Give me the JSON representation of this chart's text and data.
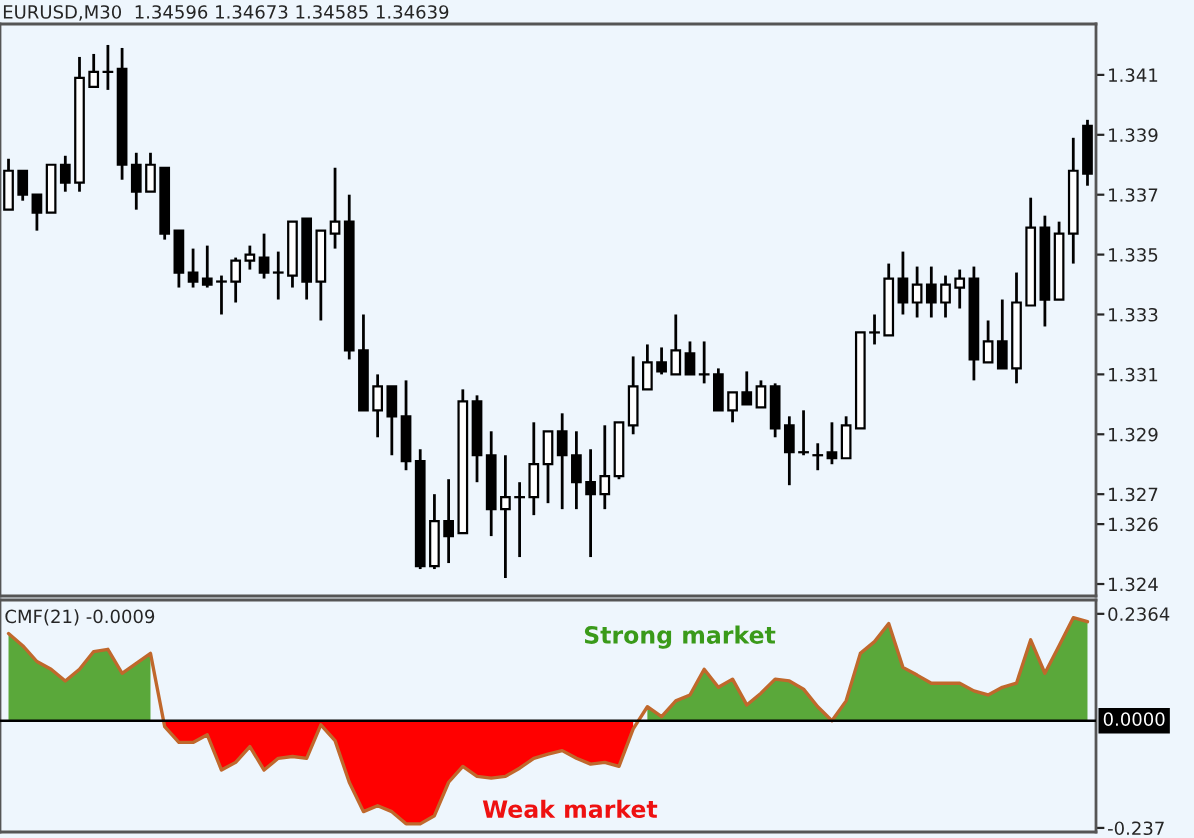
{
  "chart_data": [
    {
      "type": "candlestick",
      "title": "EURUSD,M30  1.34596 1.34673 1.34585 1.34639",
      "categories": [
        null,
        null,
        null,
        null,
        null,
        null,
        null,
        null,
        null,
        null,
        null,
        null,
        null,
        null,
        null,
        null,
        null,
        null,
        null,
        null,
        null,
        null,
        null,
        null,
        null,
        null,
        null,
        null,
        null,
        null,
        null,
        null,
        null,
        null,
        null,
        null,
        null,
        null,
        null,
        null,
        null,
        null,
        null,
        null,
        null,
        null,
        null,
        null,
        null,
        null,
        null,
        null,
        null,
        null,
        null,
        null,
        null,
        null,
        null,
        null,
        null,
        null,
        null,
        null,
        null,
        null,
        null,
        null,
        null,
        null,
        null,
        null,
        null,
        null,
        null,
        null,
        null
      ],
      "ohlc": [
        [
          1.3365,
          1.3382,
          1.3365,
          1.3378
        ],
        [
          1.3378,
          1.3378,
          1.3368,
          1.337
        ],
        [
          1.337,
          1.337,
          1.3358,
          1.3364
        ],
        [
          1.3364,
          1.338,
          1.3364,
          1.338
        ],
        [
          1.338,
          1.3383,
          1.3371,
          1.3374
        ],
        [
          1.3374,
          1.3416,
          1.3371,
          1.3409
        ],
        [
          1.3406,
          1.3417,
          1.3406,
          1.3411
        ],
        [
          1.3411,
          1.342,
          1.3405,
          1.3411
        ],
        [
          1.3412,
          1.3419,
          1.3375,
          1.338
        ],
        [
          1.338,
          1.3384,
          1.3365,
          1.3371
        ],
        [
          1.3371,
          1.3384,
          1.3371,
          1.338
        ],
        [
          1.3379,
          1.3379,
          1.3355,
          1.3357
        ],
        [
          1.3358,
          1.3358,
          1.3339,
          1.3344
        ],
        [
          1.3344,
          1.3352,
          1.3339,
          1.3341
        ],
        [
          1.3342,
          1.3353,
          1.3339,
          1.334
        ],
        [
          1.3341,
          1.3343,
          1.333,
          1.3341
        ],
        [
          1.3341,
          1.3349,
          1.3334,
          1.3348
        ],
        [
          1.3348,
          1.3353,
          1.3345,
          1.335
        ],
        [
          1.3349,
          1.3357,
          1.3342,
          1.3344
        ],
        [
          1.3344,
          1.3351,
          1.3335,
          1.3344
        ],
        [
          1.3343,
          1.3361,
          1.3339,
          1.3361
        ],
        [
          1.3362,
          1.3362,
          1.3335,
          1.3341
        ],
        [
          1.3341,
          1.3358,
          1.3328,
          1.3358
        ],
        [
          1.3357,
          1.3379,
          1.3352,
          1.3361
        ],
        [
          1.3361,
          1.337,
          1.3315,
          1.3318
        ],
        [
          1.3318,
          1.333,
          1.3298,
          1.3298
        ],
        [
          1.3298,
          1.331,
          1.3289,
          1.3306
        ],
        [
          1.3306,
          1.3306,
          1.3283,
          1.3296
        ],
        [
          1.3296,
          1.3308,
          1.3278,
          1.3281
        ],
        [
          1.3281,
          1.3285,
          1.3245,
          1.3246
        ],
        [
          1.3246,
          1.327,
          1.3245,
          1.3261
        ],
        [
          1.3261,
          1.3275,
          1.3247,
          1.3256
        ],
        [
          1.3257,
          1.3305,
          1.3257,
          1.3301
        ],
        [
          1.3301,
          1.3303,
          1.3274,
          1.3283
        ],
        [
          1.3283,
          1.3291,
          1.3256,
          1.3265
        ],
        [
          1.3265,
          1.3283,
          1.3242,
          1.3269
        ],
        [
          1.3269,
          1.3274,
          1.3249,
          1.3269
        ],
        [
          1.3269,
          1.3294,
          1.3263,
          1.328
        ],
        [
          1.328,
          1.3291,
          1.3267,
          1.3291
        ],
        [
          1.3291,
          1.3297,
          1.3265,
          1.3283
        ],
        [
          1.3283,
          1.3291,
          1.3265,
          1.3274
        ],
        [
          1.3274,
          1.3285,
          1.3249,
          1.327
        ],
        [
          1.327,
          1.3293,
          1.3265,
          1.3276
        ],
        [
          1.3276,
          1.3294,
          1.3275,
          1.3294
        ],
        [
          1.3293,
          1.3316,
          1.329,
          1.3306
        ],
        [
          1.3305,
          1.332,
          1.3305,
          1.3314
        ],
        [
          1.3314,
          1.3319,
          1.331,
          1.3311
        ],
        [
          1.331,
          1.333,
          1.331,
          1.3318
        ],
        [
          1.3317,
          1.3321,
          1.331,
          1.331
        ],
        [
          1.331,
          1.3321,
          1.3307,
          1.331
        ],
        [
          1.331,
          1.3312,
          1.3298,
          1.3298
        ],
        [
          1.3298,
          1.3304,
          1.3294,
          1.3304
        ],
        [
          1.3304,
          1.3311,
          1.33,
          1.33
        ],
        [
          1.3299,
          1.3308,
          1.3299,
          1.3306
        ],
        [
          1.3306,
          1.3307,
          1.3289,
          1.3292
        ],
        [
          1.3293,
          1.3296,
          1.3273,
          1.3284
        ],
        [
          1.3284,
          1.3298,
          1.3283,
          1.3284
        ],
        [
          1.3283,
          1.3287,
          1.3278,
          1.3283
        ],
        [
          1.3284,
          1.3294,
          1.328,
          1.3282
        ],
        [
          1.3282,
          1.3296,
          1.3282,
          1.3293
        ],
        [
          1.3292,
          1.3324,
          1.3292,
          1.3324
        ],
        [
          1.3324,
          1.333,
          1.332,
          1.3324
        ],
        [
          1.3323,
          1.3347,
          1.3323,
          1.3342
        ],
        [
          1.3342,
          1.3351,
          1.333,
          1.3334
        ],
        [
          1.3334,
          1.3346,
          1.3329,
          1.334
        ],
        [
          1.334,
          1.3346,
          1.3329,
          1.3334
        ],
        [
          1.3334,
          1.3343,
          1.3329,
          1.334
        ],
        [
          1.3339,
          1.3345,
          1.3332,
          1.3342
        ],
        [
          1.3342,
          1.3346,
          1.3308,
          1.3315
        ],
        [
          1.3314,
          1.3328,
          1.3314,
          1.3321
        ],
        [
          1.3321,
          1.3335,
          1.3312,
          1.3312
        ],
        [
          1.3312,
          1.3344,
          1.3307,
          1.3334
        ],
        [
          1.3333,
          1.3369,
          1.3333,
          1.3359
        ],
        [
          1.3359,
          1.3363,
          1.3326,
          1.3335
        ],
        [
          1.3335,
          1.3361,
          1.3335,
          1.3357
        ],
        [
          1.3357,
          1.3389,
          1.3347,
          1.3378
        ],
        [
          1.3393,
          1.3395,
          1.3373,
          1.3377
        ]
      ],
      "ylim": [
        1.3236,
        1.3427
      ],
      "yticks": [
        1.341,
        1.339,
        1.337,
        1.335,
        1.333,
        1.331,
        1.329,
        1.327,
        1.326,
        1.324
      ],
      "tick_labels": "y",
      "grid": false
    },
    {
      "type": "area",
      "title": "CMF(21) -0.0009",
      "categories": [
        null,
        null,
        null,
        null,
        null,
        null,
        null,
        null,
        null,
        null,
        null,
        null,
        null,
        null,
        null,
        null,
        null,
        null,
        null,
        null,
        null,
        null,
        null,
        null,
        null,
        null,
        null,
        null,
        null,
        null,
        null,
        null,
        null,
        null,
        null,
        null,
        null,
        null,
        null,
        null,
        null,
        null,
        null,
        null,
        null,
        null,
        null,
        null,
        null,
        null,
        null,
        null,
        null,
        null,
        null,
        null,
        null,
        null,
        null,
        null,
        null,
        null,
        null,
        null,
        null,
        null,
        null,
        null,
        null,
        null,
        null,
        null,
        null,
        null,
        null,
        null,
        null
      ],
      "series": [
        {
          "type": "area",
          "color": "#5aa83a",
          "values": [
            0.193,
            0.166,
            0.131,
            0.114,
            0.088,
            0.114,
            0.153,
            0.158,
            0.105,
            0.127,
            0.149,
            null,
            null,
            null,
            null,
            null,
            null,
            null,
            null,
            null,
            null,
            null,
            null,
            null,
            null,
            null,
            null,
            null,
            null,
            null,
            null,
            null,
            null,
            null,
            null,
            null,
            null,
            null,
            null,
            null,
            null,
            null,
            null,
            null,
            null,
            0.031,
            0.009,
            0.044,
            0.057,
            0.114,
            0.074,
            0.092,
            0.035,
            0.061,
            0.092,
            0.088,
            0.07,
            0.031,
            0,
            0.044,
            0.149,
            0.175,
            0.215,
            0.118,
            0.101,
            0.083,
            0.083,
            0.083,
            0.066,
            0.057,
            0.074,
            0.083,
            0.179,
            0.105,
            0.166,
            0.228,
            0.219
          ]
        },
        {
          "type": "area",
          "color": "#ff0000",
          "values": [
            null,
            null,
            null,
            null,
            null,
            null,
            null,
            null,
            null,
            null,
            null,
            -0.013,
            -0.048,
            -0.048,
            -0.031,
            -0.109,
            -0.092,
            -0.057,
            -0.109,
            -0.083,
            -0.079,
            -0.083,
            -0.009,
            -0.044,
            -0.136,
            -0.201,
            -0.188,
            -0.201,
            -0.228,
            -0.228,
            -0.21,
            -0.136,
            -0.101,
            -0.123,
            -0.127,
            -0.123,
            -0.105,
            -0.083,
            -0.074,
            -0.066,
            -0.083,
            -0.096,
            -0.092,
            -0.101,
            -0.018,
            null,
            null,
            null,
            null,
            null,
            null,
            null,
            null,
            null,
            null,
            null,
            null,
            null,
            null,
            null,
            null,
            null,
            null,
            null,
            null,
            null,
            null,
            null,
            null,
            null,
            null,
            null,
            null,
            null,
            null,
            null,
            null
          ]
        },
        {
          "type": "line",
          "color": "#c0682c",
          "values": [
            0.193,
            0.166,
            0.131,
            0.114,
            0.088,
            0.114,
            0.153,
            0.158,
            0.105,
            0.127,
            0.149,
            -0.013,
            -0.048,
            -0.048,
            -0.031,
            -0.109,
            -0.092,
            -0.057,
            -0.109,
            -0.083,
            -0.079,
            -0.083,
            -0.009,
            -0.044,
            -0.136,
            -0.201,
            -0.188,
            -0.201,
            -0.228,
            -0.228,
            -0.21,
            -0.136,
            -0.101,
            -0.123,
            -0.127,
            -0.123,
            -0.105,
            -0.083,
            -0.074,
            -0.066,
            -0.083,
            -0.096,
            -0.092,
            -0.101,
            -0.018,
            0.031,
            0.009,
            0.044,
            0.057,
            0.114,
            0.074,
            0.092,
            0.035,
            0.061,
            0.092,
            0.088,
            0.07,
            0.031,
            0,
            0.044,
            0.149,
            0.175,
            0.215,
            0.118,
            0.101,
            0.083,
            0.083,
            0.083,
            0.066,
            0.057,
            0.074,
            0.083,
            0.179,
            0.105,
            0.166,
            0.228,
            0.219
          ]
        }
      ],
      "ylim": [
        -0.246,
        0.267
      ],
      "yticks": [
        0.2364,
        -0.237
      ],
      "ref_lines": [
        {
          "axis": "y",
          "value": 0,
          "label": "0.0000",
          "color": "#000000"
        }
      ],
      "annotations": [
        "Strong market",
        "Weak market"
      ],
      "tick_labels": "y",
      "grid": false
    }
  ]
}
